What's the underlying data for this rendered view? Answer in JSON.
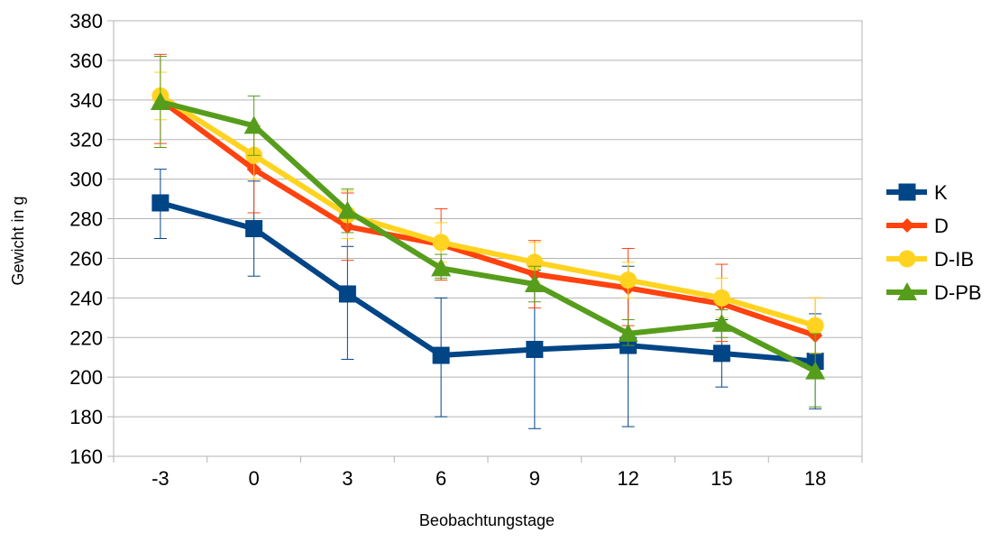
{
  "chart_data": {
    "type": "line",
    "title": "",
    "xlabel": "Beobachtungstage",
    "ylabel": "Gewicht in g",
    "categories": [
      "-3",
      "0",
      "3",
      "6",
      "9",
      "12",
      "15",
      "18"
    ],
    "ylim": [
      160,
      380
    ],
    "yticks": [
      "160",
      "180",
      "200",
      "220",
      "240",
      "260",
      "280",
      "300",
      "320",
      "340",
      "360",
      "380"
    ],
    "grid": true,
    "legend_position": "right",
    "series": [
      {
        "name": "K",
        "color": "#004586",
        "marker": "square",
        "values": [
          288,
          275,
          242,
          211,
          214,
          216,
          212,
          208
        ],
        "err_low": [
          270,
          251,
          209,
          180,
          174,
          175,
          195,
          184
        ],
        "err_high": [
          305,
          299,
          266,
          240,
          254,
          256,
          229,
          232
        ]
      },
      {
        "name": "D",
        "color": "#ff420e",
        "marker": "diamond",
        "values": [
          340,
          305,
          276,
          267,
          252,
          245,
          237,
          221
        ],
        "err_low": [
          318,
          283,
          259,
          249,
          235,
          226,
          218,
          202
        ],
        "err_high": [
          363,
          327,
          293,
          285,
          269,
          265,
          257,
          240
        ]
      },
      {
        "name": "D-IB",
        "color": "#ffd320",
        "marker": "circle",
        "values": [
          342,
          312,
          282,
          268,
          258,
          249,
          240,
          226
        ],
        "err_low": [
          330,
          300,
          270,
          258,
          248,
          240,
          230,
          212
        ],
        "err_high": [
          354,
          324,
          294,
          278,
          268,
          258,
          250,
          240
        ]
      },
      {
        "name": "D-PB",
        "color": "#579d1c",
        "marker": "triangle",
        "values": [
          339,
          327,
          284,
          255,
          247,
          222,
          227,
          203
        ],
        "err_low": [
          316,
          312,
          273,
          250,
          238,
          216,
          220,
          185
        ],
        "err_high": [
          362,
          342,
          295,
          262,
          256,
          229,
          234,
          222
        ]
      }
    ]
  }
}
